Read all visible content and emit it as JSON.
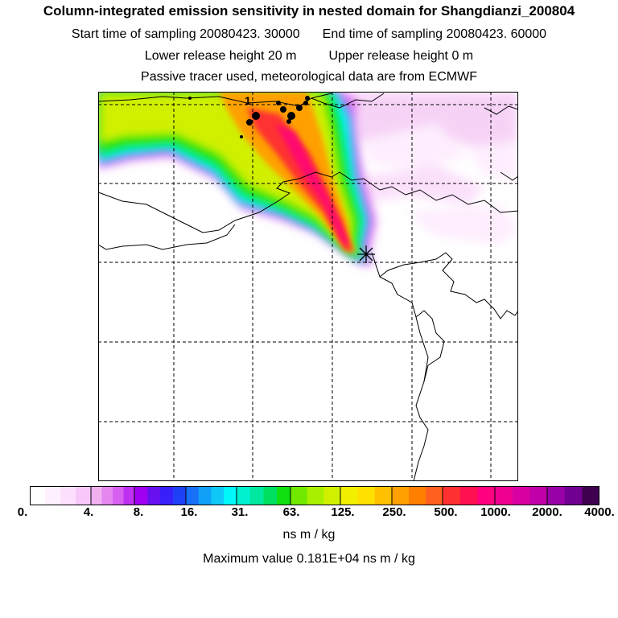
{
  "header": {
    "title": "Column-integrated emission sensitivity in nested domain for Shangdianzi_200804",
    "start_label": "Start time of sampling 20080423. 30000",
    "end_label": "End time of sampling 20080423. 60000",
    "lower_label": "Lower release height   20 m",
    "upper_label": "Upper release height    0 m",
    "info": "Passive tracer used, meteorological data are from ECMWF"
  },
  "map": {
    "release_marker_text": "1",
    "station_symbol": "asterisk"
  },
  "colorbar": {
    "tick_labels": [
      "0.",
      "4.",
      "8.",
      "16.",
      "31.",
      "63.",
      "125.",
      "250.",
      "500.",
      "1000.",
      "2000.",
      "4000."
    ],
    "colors": [
      "#ffffff",
      "#fff0ff",
      "#fde0fd",
      "#f8c8f8",
      "#f0b0f0",
      "#e488f0",
      "#d860f0",
      "#c030f0",
      "#a000f0",
      "#6810f0",
      "#3820f8",
      "#2040f8",
      "#1870f8",
      "#10a0f8",
      "#10c8f8",
      "#00f8f8",
      "#00f0d0",
      "#00e8a0",
      "#00e060",
      "#10e010",
      "#70e800",
      "#a8f000",
      "#d0f000",
      "#f0f000",
      "#ffe000",
      "#ffc000",
      "#ffa000",
      "#ff8000",
      "#ff6020",
      "#ff3030",
      "#ff1050",
      "#ff0080",
      "#f00090",
      "#d800a0",
      "#c000a8",
      "#9800a8",
      "#700090",
      "#400050"
    ],
    "units": "ns m / kg"
  },
  "footer": {
    "max_value": "Maximum value  0.181E+04 ns m / kg"
  }
}
